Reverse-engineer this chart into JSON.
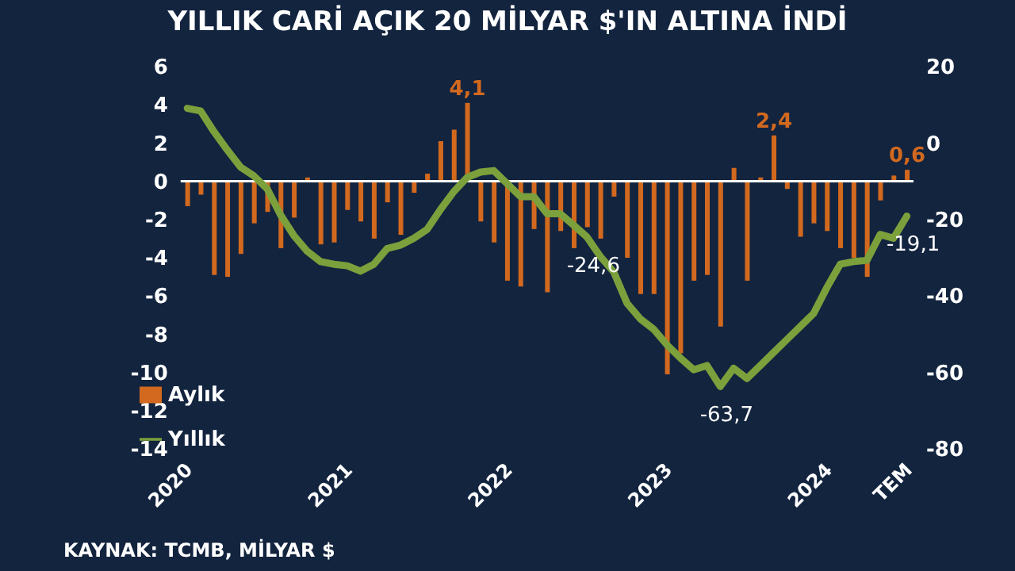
{
  "chart_data": {
    "type": "bar",
    "title": "YILLIK CARİ AÇIK 20 MİLYAR $'IN ALTINA İNDİ",
    "annotations": [
      "KAYNAK: TCMB, MİLYAR $"
    ],
    "categories": [
      "2020",
      null,
      null,
      null,
      null,
      null,
      null,
      null,
      null,
      null,
      null,
      null,
      "2021",
      null,
      null,
      null,
      null,
      null,
      null,
      null,
      null,
      null,
      null,
      null,
      "2022",
      null,
      null,
      null,
      null,
      null,
      null,
      null,
      null,
      null,
      null,
      null,
      "2023",
      null,
      null,
      null,
      null,
      null,
      null,
      null,
      null,
      null,
      null,
      null,
      "2024",
      null,
      null,
      null,
      null,
      null,
      "TEM"
    ],
    "series": [
      {
        "name": "Aylık",
        "color": "#d2691e",
        "values": [
          -1.3,
          -0.7,
          -4.9,
          -5.0,
          -3.8,
          -2.2,
          -1.6,
          -3.5,
          -1.9,
          0.2,
          -3.3,
          -3.2,
          -1.5,
          -2.1,
          -3.0,
          -1.1,
          -2.8,
          -0.6,
          0.4,
          2.1,
          2.7,
          4.1,
          -2.1,
          -3.2,
          -5.2,
          -5.5,
          -2.5,
          -5.8,
          -2.6,
          -3.5,
          -2.4,
          -3.0,
          -0.8,
          -4.0,
          -5.9,
          -5.9,
          -10.1,
          -9.0,
          -5.2,
          -4.9,
          -7.6,
          0.7,
          -5.2,
          0.2,
          2.4,
          -0.4,
          -2.9,
          -2.2,
          -2.6,
          -3.5,
          -4.0,
          -5.0,
          -1.0,
          0.3,
          0.6
        ],
        "value_labels": [
          null,
          null,
          null,
          null,
          null,
          null,
          null,
          null,
          null,
          null,
          null,
          null,
          null,
          null,
          null,
          null,
          null,
          null,
          null,
          null,
          null,
          "4,1",
          null,
          null,
          null,
          null,
          null,
          null,
          null,
          null,
          null,
          null,
          null,
          null,
          null,
          null,
          null,
          null,
          null,
          null,
          null,
          null,
          null,
          null,
          "2,4",
          null,
          null,
          null,
          null,
          null,
          null,
          null,
          null,
          null,
          "0,6"
        ]
      },
      {
        "name": "Yıllık",
        "type": "line",
        "axis": "y2",
        "color": "#7ba03c",
        "values": [
          9.1,
          8.4,
          3.0,
          -1.8,
          -6.3,
          -8.6,
          -12.0,
          -18.8,
          -24.2,
          -28.3,
          -31.0,
          -31.7,
          -32.1,
          -33.5,
          -31.7,
          -27.6,
          -26.7,
          -24.9,
          -22.6,
          -17.4,
          -12.7,
          -9.0,
          -7.6,
          -7.2,
          -10.6,
          -14.0,
          -14.0,
          -18.5,
          -18.5,
          -21.5,
          -24.6,
          -29.7,
          -33.7,
          -41.9,
          -46.0,
          -48.7,
          -52.8,
          -56.2,
          -59.3,
          -58.2,
          -63.7,
          -58.9,
          -61.6,
          -58.2,
          -54.8,
          -51.4,
          -48.0,
          -44.6,
          -37.8,
          -31.7,
          -31.0,
          -30.7,
          -23.9,
          -24.9,
          -19.1
        ],
        "value_labels": [
          null,
          null,
          null,
          null,
          null,
          null,
          null,
          null,
          null,
          null,
          null,
          null,
          null,
          null,
          null,
          null,
          null,
          null,
          null,
          null,
          null,
          null,
          null,
          null,
          null,
          null,
          null,
          null,
          null,
          null,
          "-24,6",
          null,
          null,
          null,
          null,
          null,
          null,
          null,
          null,
          null,
          "-63,7",
          null,
          null,
          null,
          null,
          null,
          null,
          null,
          null,
          null,
          null,
          null,
          null,
          null,
          "-19,1"
        ]
      }
    ],
    "ylim": [
      -14,
      6
    ],
    "yticks": [
      -14,
      -12,
      -10,
      -8,
      -6,
      -4,
      -2,
      0,
      2,
      4,
      6
    ],
    "y2lim": [
      -80,
      20
    ],
    "y2ticks": [
      -80,
      -60,
      -40,
      -20,
      0,
      20
    ],
    "ref_lines": [
      {
        "axis": "y",
        "value": 0,
        "color": "#ffffff"
      }
    ],
    "grid": false,
    "legend": "bottom left",
    "marker": "none"
  }
}
